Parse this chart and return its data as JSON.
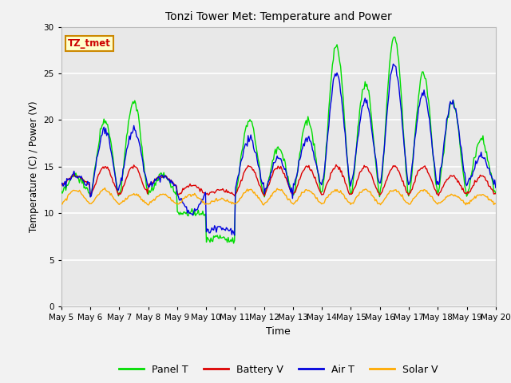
{
  "title": "Tonzi Tower Met: Temperature and Power",
  "xlabel": "Time",
  "ylabel": "Temperature (C) / Power (V)",
  "ylim": [
    0,
    30
  ],
  "yticks": [
    0,
    5,
    10,
    15,
    20,
    25,
    30
  ],
  "colors": {
    "panel_t": "#00dd00",
    "battery_v": "#dd0000",
    "air_t": "#0000dd",
    "solar_v": "#ffaa00"
  },
  "legend_labels": [
    "Panel T",
    "Battery V",
    "Air T",
    "Solar V"
  ],
  "annotation_text": "TZ_tmet",
  "annotation_color": "#cc0000",
  "annotation_bg": "#ffffcc",
  "annotation_border": "#cc8800",
  "plot_bg_color": "#e8e8e8",
  "fig_bg_color": "#f2f2f2",
  "grid_color": "#ffffff",
  "x_start": 5,
  "x_end": 20,
  "xtick_labels": [
    "May 5",
    "May 6",
    "May 7",
    "May 8",
    "May 9",
    "May 10",
    "May 11",
    "May 12",
    "May 13",
    "May 14",
    "May 15",
    "May 16",
    "May 17",
    "May 18",
    "May 19",
    "May 20"
  ],
  "xtick_positions": [
    5,
    6,
    7,
    8,
    9,
    10,
    11,
    12,
    13,
    14,
    15,
    16,
    17,
    18,
    19,
    20
  ]
}
